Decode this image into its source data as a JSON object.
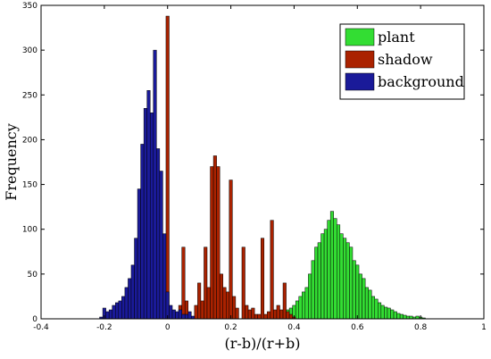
{
  "chart_data": {
    "type": "bar",
    "title": "",
    "xlabel": "(r-b)/(r+b)",
    "ylabel": "Frequency",
    "xlim": [
      -0.4,
      1.0
    ],
    "ylim": [
      0,
      350
    ],
    "bin_width": 0.01,
    "x_ticks": [
      "-0.4",
      "-0.2",
      "0",
      "0.2",
      "0.4",
      "0.6",
      "0.8",
      "1"
    ],
    "x_tick_values": [
      -0.4,
      -0.2,
      0,
      0.2,
      0.4,
      0.6,
      0.8,
      1.0
    ],
    "y_ticks": [
      "0",
      "50",
      "100",
      "150",
      "200",
      "250",
      "300",
      "350"
    ],
    "y_tick_values": [
      0,
      50,
      100,
      150,
      200,
      250,
      300,
      350
    ],
    "grid": false,
    "legend_position": "top-right",
    "series": [
      {
        "name": "plant",
        "color": "#33dd33",
        "x": [
          0.33,
          0.34,
          0.35,
          0.36,
          0.37,
          0.38,
          0.39,
          0.4,
          0.41,
          0.42,
          0.43,
          0.44,
          0.45,
          0.46,
          0.47,
          0.48,
          0.49,
          0.5,
          0.51,
          0.52,
          0.53,
          0.54,
          0.55,
          0.56,
          0.57,
          0.58,
          0.59,
          0.6,
          0.61,
          0.62,
          0.63,
          0.64,
          0.65,
          0.66,
          0.67,
          0.68,
          0.69,
          0.7,
          0.71,
          0.72,
          0.73,
          0.74,
          0.75,
          0.76,
          0.77,
          0.78,
          0.79,
          0.8,
          0.81
        ],
        "values": [
          2,
          3,
          5,
          6,
          8,
          10,
          12,
          15,
          20,
          25,
          30,
          35,
          50,
          65,
          80,
          85,
          95,
          100,
          110,
          120,
          112,
          105,
          95,
          90,
          85,
          80,
          65,
          60,
          50,
          45,
          35,
          32,
          25,
          22,
          18,
          15,
          13,
          12,
          10,
          8,
          6,
          5,
          4,
          3,
          3,
          2,
          3,
          2,
          1
        ]
      },
      {
        "name": "shadow",
        "color": "#aa2200",
        "x": [
          0.0,
          0.04,
          0.05,
          0.06,
          0.09,
          0.1,
          0.11,
          0.12,
          0.13,
          0.14,
          0.15,
          0.16,
          0.17,
          0.18,
          0.19,
          0.2,
          0.21,
          0.22,
          0.24,
          0.25,
          0.26,
          0.27,
          0.28,
          0.29,
          0.3,
          0.31,
          0.32,
          0.33,
          0.34,
          0.35,
          0.36,
          0.37,
          0.38,
          0.39,
          0.4
        ],
        "values": [
          338,
          15,
          80,
          20,
          15,
          40,
          20,
          80,
          35,
          170,
          182,
          170,
          50,
          35,
          30,
          155,
          25,
          12,
          80,
          15,
          10,
          12,
          5,
          5,
          90,
          5,
          8,
          110,
          10,
          15,
          10,
          40,
          8,
          5,
          2
        ]
      },
      {
        "name": "background",
        "color": "#1a1a99",
        "x": [
          -0.21,
          -0.2,
          -0.19,
          -0.18,
          -0.17,
          -0.16,
          -0.15,
          -0.14,
          -0.13,
          -0.12,
          -0.11,
          -0.1,
          -0.09,
          -0.08,
          -0.07,
          -0.06,
          -0.05,
          -0.04,
          -0.03,
          -0.02,
          -0.01,
          0.0,
          0.01,
          0.02,
          0.03,
          0.04,
          0.05,
          0.06,
          0.07,
          0.08
        ],
        "values": [
          2,
          12,
          8,
          10,
          15,
          18,
          20,
          25,
          35,
          45,
          60,
          90,
          145,
          195,
          235,
          255,
          230,
          300,
          190,
          165,
          95,
          30,
          15,
          10,
          8,
          10,
          5,
          5,
          8,
          3
        ]
      }
    ]
  }
}
